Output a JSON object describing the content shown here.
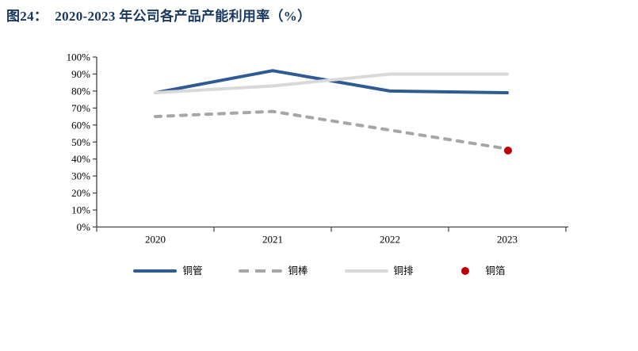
{
  "title": "图24：  2020-2023 年公司各产品产能利用率（%）",
  "colors": {
    "title_text": "#17375E",
    "axis": "#404040",
    "tick_label": "#000000"
  },
  "chart_data": {
    "type": "line",
    "title": "2020-2023 年公司各产品产能利用率（%）",
    "categories": [
      "2020",
      "2021",
      "2022",
      "2023"
    ],
    "series": [
      {
        "name": "铜管",
        "kind": "line",
        "style": "solid",
        "color": "#2F5B94",
        "values": [
          79,
          92,
          80,
          79
        ]
      },
      {
        "name": "铜棒",
        "kind": "line",
        "style": "dashed",
        "color": "#A6A6A6",
        "values": [
          65,
          68,
          57,
          46
        ]
      },
      {
        "name": "铜排",
        "kind": "line",
        "style": "solid",
        "color": "#D9D9D9",
        "values": [
          79,
          83,
          90,
          90
        ]
      },
      {
        "name": "铜箔",
        "kind": "point",
        "style": "dot",
        "color": "#C00000",
        "values": [
          null,
          null,
          null,
          45
        ]
      }
    ],
    "xlabel": "",
    "ylabel": "",
    "ylim": [
      0,
      100
    ],
    "y_ticks": [
      "0%",
      "10%",
      "20%",
      "30%",
      "40%",
      "50%",
      "60%",
      "70%",
      "80%",
      "90%",
      "100%"
    ],
    "grid": false,
    "legend_position": "bottom"
  }
}
